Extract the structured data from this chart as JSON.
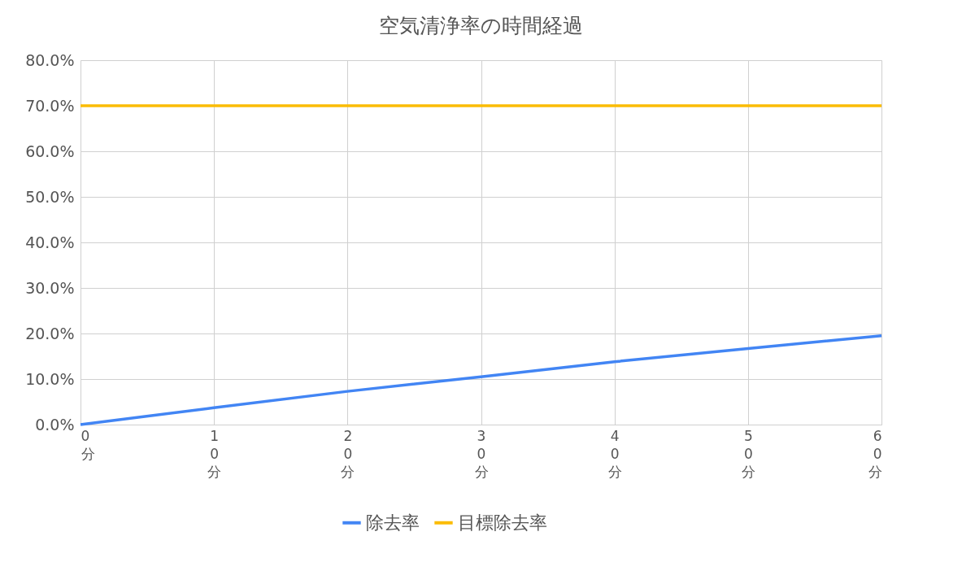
{
  "chart_data": {
    "type": "line",
    "title": "空気清浄率の時間経過",
    "categories": [
      "0分",
      "10分",
      "20分",
      "30分",
      "40分",
      "50分",
      "60分"
    ],
    "series": [
      {
        "name": "除去率",
        "color": "#4285f4",
        "values": [
          0,
          3.7,
          7.3,
          10.5,
          13.8,
          16.7,
          19.5
        ]
      },
      {
        "name": "目標除去率",
        "color": "#fbbc04",
        "values": [
          70,
          70,
          70,
          70,
          70,
          70,
          70
        ]
      }
    ],
    "ylim": [
      0,
      80
    ],
    "yticks": [
      {
        "value": 0,
        "label": "0.0%"
      },
      {
        "value": 10,
        "label": "10.0%"
      },
      {
        "value": 20,
        "label": "20.0%"
      },
      {
        "value": 30,
        "label": "30.0%"
      },
      {
        "value": 40,
        "label": "40.0%"
      },
      {
        "value": 50,
        "label": "50.0%"
      },
      {
        "value": 60,
        "label": "60.0%"
      },
      {
        "value": 70,
        "label": "70.0%"
      },
      {
        "value": 80,
        "label": "80.0%"
      }
    ],
    "grid": true,
    "legend": "bottom",
    "marker": "none",
    "line_style": "solid"
  }
}
